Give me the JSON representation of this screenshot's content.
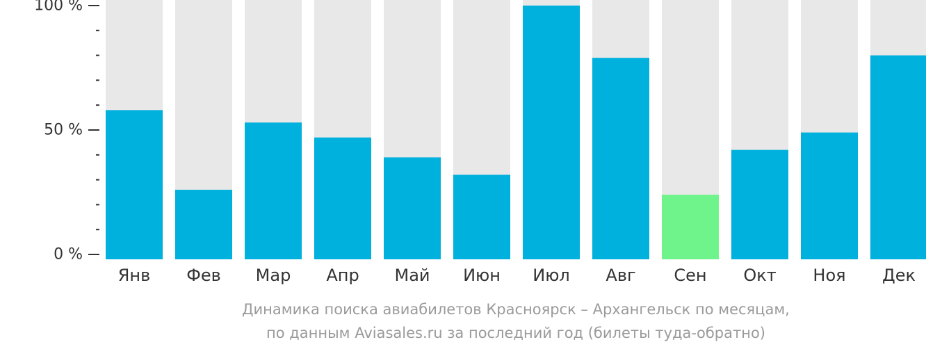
{
  "chart_data": {
    "type": "bar",
    "categories": [
      "Янв",
      "Фев",
      "Мар",
      "Апр",
      "Май",
      "Июн",
      "Июл",
      "Авг",
      "Сен",
      "Окт",
      "Ноя",
      "Дек"
    ],
    "values": [
      58,
      26,
      53,
      47,
      39,
      32,
      100,
      79,
      24,
      42,
      49,
      80
    ],
    "ylim": [
      0,
      100
    ],
    "yticks": [
      {
        "value": 100,
        "label": "100 %"
      },
      {
        "value": 50,
        "label": "50 %"
      },
      {
        "value": 0,
        "label": "0 %"
      }
    ],
    "minor_tick_step": 10,
    "highlight_index": 8,
    "colors": {
      "bar": "#00b0dd",
      "highlight": "#6ef48a",
      "track": "#e8e8e8",
      "axis": "#333333"
    }
  },
  "caption": {
    "line1": "Динамика поиска авиабилетов Красноярск – Архангельск по месяцам,",
    "line2": "по данным Aviasales.ru за последний год (билеты туда-обратно)"
  }
}
